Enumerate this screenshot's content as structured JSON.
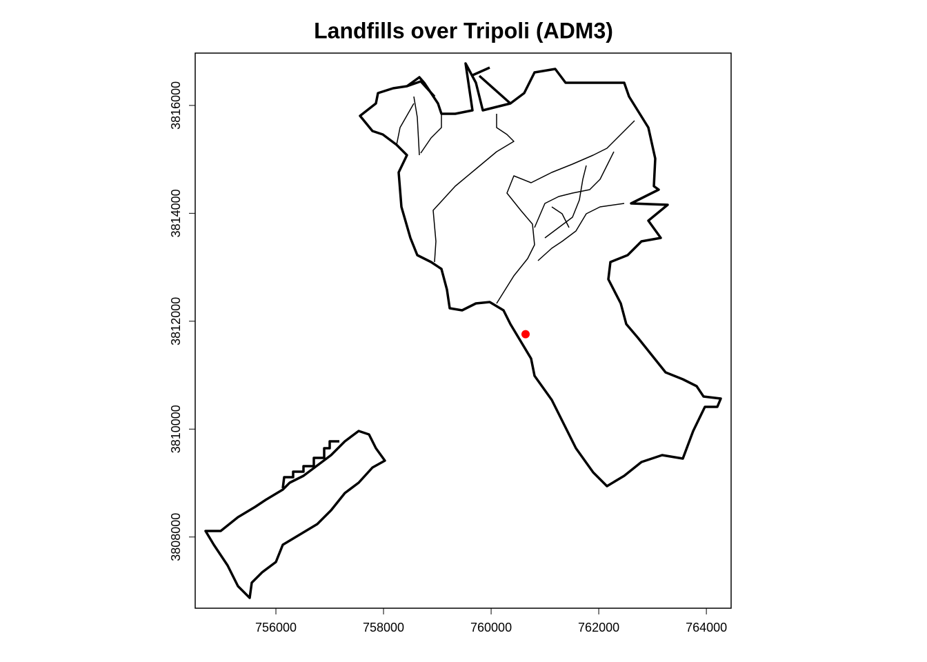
{
  "chart_data": {
    "type": "scatter",
    "title": "Landfills over Tripoli (ADM3)",
    "x": [
      760640
    ],
    "values": [
      3811760
    ],
    "color": "#ff0000",
    "xlim": [
      754500,
      764460
    ],
    "ylim": [
      3806680,
      3816970
    ],
    "xticks": [
      756000,
      758000,
      760000,
      762000,
      764000
    ],
    "yticks": [
      3808000,
      3810000,
      3812000,
      3814000,
      3816000
    ]
  }
}
